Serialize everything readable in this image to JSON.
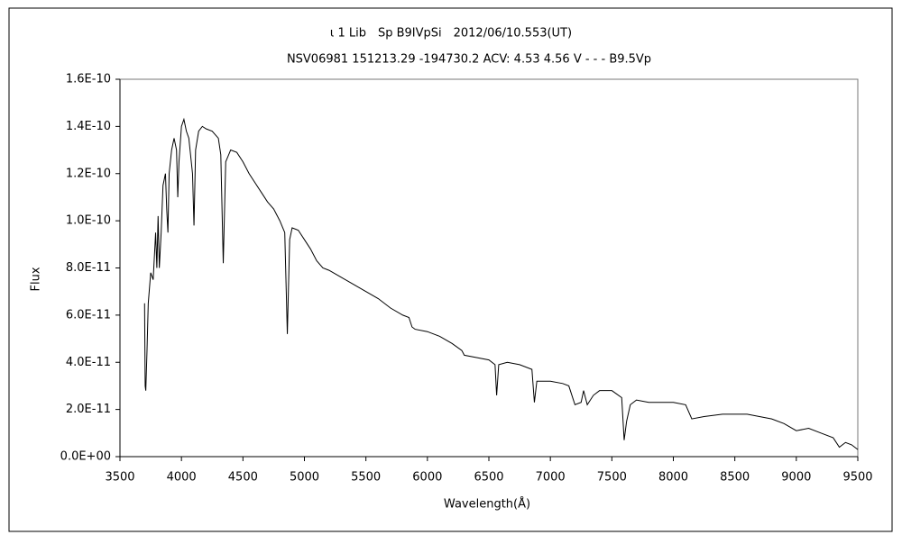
{
  "chart_data": {
    "type": "line",
    "title": "ι 1 Lib　Sp B9IVpSi　2012/06/10.553(UT)",
    "subtitle": "NSV06981 151213.29 -194730.2 ACV: 4.53 4.56 V - - - B9.5Vp",
    "x_label": "Wavelength(Å)",
    "y_label": "Flux",
    "color": "#000000",
    "xlim": [
      3500,
      9500
    ],
    "xticks": [
      3500,
      4000,
      4500,
      5000,
      5500,
      6000,
      6500,
      7000,
      7500,
      8000,
      8500,
      9000,
      9500
    ],
    "ylim": [
      0,
      1.6e-10
    ],
    "yticks": [
      {
        "value": 0,
        "label": "0.0E+00"
      },
      {
        "value": 2e-11,
        "label": "2.0E-11"
      },
      {
        "value": 4e-11,
        "label": "4.0E-11"
      },
      {
        "value": 6e-11,
        "label": "6.0E-11"
      },
      {
        "value": 8e-11,
        "label": "8.0E-11"
      },
      {
        "value": 1e-10,
        "label": "1.0E-10"
      },
      {
        "value": 1.2e-10,
        "label": "1.2E-10"
      },
      {
        "value": 1.4e-10,
        "label": "1.4E-10"
      },
      {
        "value": 1.6e-10,
        "label": "1.6E-10"
      }
    ],
    "x": [
      3700,
      3705,
      3710,
      3720,
      3730,
      3750,
      3770,
      3790,
      3800,
      3810,
      3820,
      3835,
      3850,
      3870,
      3880,
      3890,
      3900,
      3920,
      3940,
      3960,
      3970,
      3980,
      4000,
      4020,
      4040,
      4060,
      4090,
      4102,
      4115,
      4140,
      4170,
      4200,
      4250,
      4300,
      4320,
      4340,
      4360,
      4400,
      4450,
      4500,
      4550,
      4600,
      4650,
      4700,
      4750,
      4800,
      4840,
      4861,
      4880,
      4900,
      4950,
      5000,
      5050,
      5100,
      5150,
      5200,
      5300,
      5400,
      5500,
      5600,
      5700,
      5800,
      5850,
      5875,
      5900,
      6000,
      6100,
      6200,
      6280,
      6300,
      6400,
      6500,
      6550,
      6563,
      6580,
      6650,
      6750,
      6850,
      6870,
      6890,
      7000,
      7100,
      7150,
      7200,
      7250,
      7270,
      7300,
      7350,
      7400,
      7500,
      7580,
      7600,
      7620,
      7650,
      7700,
      7800,
      8000,
      8100,
      8150,
      8250,
      8400,
      8600,
      8800,
      8900,
      9000,
      9100,
      9200,
      9300,
      9350,
      9400,
      9450,
      9500
    ],
    "values": [
      6.5e-11,
      3e-11,
      2.8e-11,
      4.5e-11,
      6.5e-11,
      7.8e-11,
      7.5e-11,
      9.5e-11,
      8e-11,
      1.02e-10,
      8e-11,
      9.5e-11,
      1.15e-10,
      1.2e-10,
      1.05e-10,
      9.5e-11,
      1.2e-10,
      1.3e-10,
      1.35e-10,
      1.3e-10,
      1.1e-10,
      1.25e-10,
      1.4e-10,
      1.43e-10,
      1.38e-10,
      1.35e-10,
      1.2e-10,
      9.8e-11,
      1.3e-10,
      1.38e-10,
      1.4e-10,
      1.39e-10,
      1.38e-10,
      1.35e-10,
      1.28e-10,
      8.2e-11,
      1.25e-10,
      1.3e-10,
      1.29e-10,
      1.25e-10,
      1.2e-10,
      1.16e-10,
      1.12e-10,
      1.08e-10,
      1.05e-10,
      1e-10,
      9.5e-11,
      5.2e-11,
      9.2e-11,
      9.7e-11,
      9.6e-11,
      9.2e-11,
      8.8e-11,
      8.3e-11,
      8e-11,
      7.9e-11,
      7.6e-11,
      7.3e-11,
      7e-11,
      6.7e-11,
      6.3e-11,
      6e-11,
      5.9e-11,
      5.5e-11,
      5.4e-11,
      5.3e-11,
      5.1e-11,
      4.8e-11,
      4.5e-11,
      4.3e-11,
      4.2e-11,
      4.1e-11,
      3.9e-11,
      2.6e-11,
      3.9e-11,
      4e-11,
      3.9e-11,
      3.7e-11,
      2.3e-11,
      3.2e-11,
      3.2e-11,
      3.1e-11,
      3e-11,
      2.2e-11,
      2.3e-11,
      2.8e-11,
      2.2e-11,
      2.6e-11,
      2.8e-11,
      2.8e-11,
      2.5e-11,
      7e-12,
      1.5e-11,
      2.2e-11,
      2.4e-11,
      2.3e-11,
      2.3e-11,
      2.2e-11,
      1.6e-11,
      1.7e-11,
      1.8e-11,
      1.8e-11,
      1.6e-11,
      1.4e-11,
      1.1e-11,
      1.2e-11,
      1e-11,
      8e-12,
      4e-12,
      6e-12,
      5e-12,
      3e-12
    ]
  }
}
